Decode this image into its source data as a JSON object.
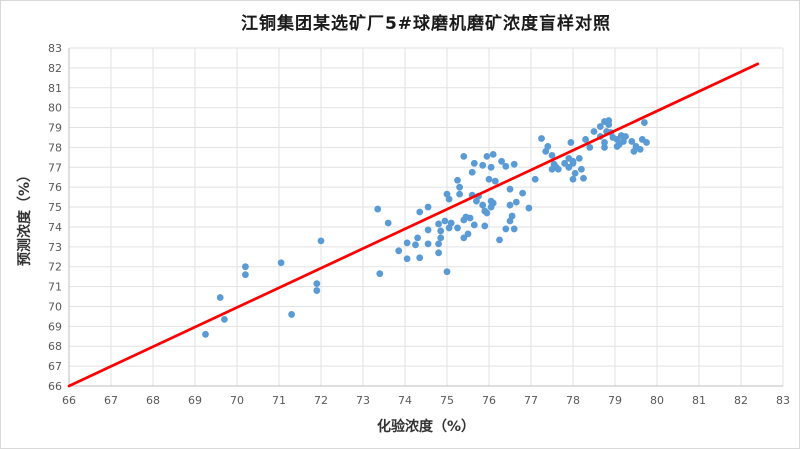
{
  "chart_data": {
    "type": "scatter",
    "title": "江铜集团某选矿厂5#球磨机磨矿浓度盲样对照",
    "xlabel": "化验浓度（%）",
    "ylabel": "预测浓度（%）",
    "xlim": [
      66,
      83
    ],
    "ylim": [
      66,
      83
    ],
    "xticks": [
      66,
      67,
      68,
      69,
      70,
      71,
      72,
      73,
      74,
      75,
      76,
      77,
      78,
      79,
      80,
      81,
      82,
      83
    ],
    "yticks": [
      66,
      67,
      68,
      69,
      70,
      71,
      72,
      73,
      74,
      75,
      76,
      77,
      78,
      79,
      80,
      81,
      82,
      83
    ],
    "grid": true,
    "legend_position": "none",
    "colors": {
      "point": "#5B9BD5",
      "reference_line": "#FF0000",
      "grid": "#E2E2E2",
      "axis": "#BFBFBF",
      "tick_label": "#595959",
      "background": "#FFFFFF"
    },
    "series": [
      {
        "id": "scatter-points",
        "type": "scatter",
        "color": "#5B9BD5",
        "marker_radius": 3.4,
        "points": [
          [
            69.25,
            68.6
          ],
          [
            69.6,
            70.45
          ],
          [
            69.7,
            69.35
          ],
          [
            70.2,
            72.0
          ],
          [
            70.2,
            71.6
          ],
          [
            71.05,
            72.2
          ],
          [
            71.3,
            69.6
          ],
          [
            71.9,
            71.15
          ],
          [
            71.9,
            70.8
          ],
          [
            72.0,
            73.3
          ],
          [
            73.35,
            74.9
          ],
          [
            73.6,
            74.2
          ],
          [
            73.4,
            71.65
          ],
          [
            73.85,
            72.8
          ],
          [
            74.05,
            73.2
          ],
          [
            74.25,
            73.1
          ],
          [
            74.55,
            73.15
          ],
          [
            74.8,
            73.15
          ],
          [
            74.05,
            72.4
          ],
          [
            74.35,
            72.45
          ],
          [
            74.8,
            72.7
          ],
          [
            75.0,
            71.75
          ],
          [
            74.3,
            73.45
          ],
          [
            74.35,
            74.75
          ],
          [
            74.55,
            75.0
          ],
          [
            74.55,
            73.85
          ],
          [
            74.8,
            74.15
          ],
          [
            74.85,
            73.8
          ],
          [
            75.05,
            75.4
          ],
          [
            75.0,
            75.65
          ],
          [
            75.3,
            75.65
          ],
          [
            74.85,
            73.45
          ],
          [
            75.4,
            73.45
          ],
          [
            74.95,
            74.3
          ],
          [
            75.1,
            74.2
          ],
          [
            75.05,
            73.95
          ],
          [
            75.25,
            73.95
          ],
          [
            75.4,
            74.35
          ],
          [
            75.45,
            74.5
          ],
          [
            75.5,
            73.65
          ],
          [
            75.55,
            74.45
          ],
          [
            75.65,
            74.1
          ],
          [
            75.9,
            74.05
          ],
          [
            75.6,
            75.6
          ],
          [
            75.75,
            75.55
          ],
          [
            75.7,
            75.3
          ],
          [
            75.85,
            75.1
          ],
          [
            75.9,
            74.8
          ],
          [
            76.05,
            75.3
          ],
          [
            76.1,
            75.2
          ],
          [
            76.05,
            75.0
          ],
          [
            76.5,
            75.9
          ],
          [
            76.8,
            75.7
          ],
          [
            76.65,
            75.25
          ],
          [
            76.5,
            75.1
          ],
          [
            76.95,
            74.95
          ],
          [
            76.55,
            74.55
          ],
          [
            76.5,
            74.3
          ],
          [
            76.4,
            73.9
          ],
          [
            76.6,
            73.9
          ],
          [
            75.95,
            74.7
          ],
          [
            76.25,
            73.35
          ],
          [
            75.4,
            77.55
          ],
          [
            75.65,
            77.2
          ],
          [
            75.6,
            76.75
          ],
          [
            75.95,
            77.55
          ],
          [
            75.85,
            77.1
          ],
          [
            76.05,
            77.0
          ],
          [
            76.1,
            77.65
          ],
          [
            76.3,
            77.3
          ],
          [
            76.4,
            77.05
          ],
          [
            76.6,
            77.15
          ],
          [
            76.0,
            76.4
          ],
          [
            76.15,
            76.3
          ],
          [
            77.1,
            76.4
          ],
          [
            75.25,
            76.35
          ],
          [
            75.3,
            76.0
          ],
          [
            77.25,
            78.45
          ],
          [
            77.4,
            78.05
          ],
          [
            77.35,
            77.8
          ],
          [
            77.5,
            77.6
          ],
          [
            77.55,
            77.15
          ],
          [
            77.6,
            77.0
          ],
          [
            77.5,
            76.9
          ],
          [
            77.65,
            76.9
          ],
          [
            77.95,
            78.25
          ],
          [
            78.3,
            78.4
          ],
          [
            77.9,
            77.45
          ],
          [
            78.0,
            77.3
          ],
          [
            78.15,
            77.45
          ],
          [
            77.8,
            77.2
          ],
          [
            78.0,
            77.2
          ],
          [
            77.9,
            77.0
          ],
          [
            78.05,
            76.7
          ],
          [
            78.2,
            76.9
          ],
          [
            78.0,
            76.4
          ],
          [
            78.25,
            76.45
          ],
          [
            78.4,
            78.0
          ],
          [
            78.5,
            78.8
          ],
          [
            78.65,
            78.55
          ],
          [
            78.65,
            79.05
          ],
          [
            78.75,
            79.3
          ],
          [
            78.85,
            79.35
          ],
          [
            78.85,
            79.15
          ],
          [
            78.8,
            78.8
          ],
          [
            78.9,
            78.75
          ],
          [
            78.95,
            78.5
          ],
          [
            78.75,
            78.25
          ],
          [
            78.75,
            78.0
          ],
          [
            79.05,
            78.4
          ],
          [
            79.15,
            78.6
          ],
          [
            79.2,
            78.3
          ],
          [
            79.25,
            78.55
          ],
          [
            79.05,
            78.05
          ],
          [
            79.1,
            78.15
          ],
          [
            79.4,
            78.3
          ],
          [
            79.5,
            78.05
          ],
          [
            79.45,
            77.8
          ],
          [
            79.6,
            77.9
          ],
          [
            79.7,
            79.25
          ],
          [
            79.65,
            78.4
          ],
          [
            79.75,
            78.25
          ]
        ]
      },
      {
        "id": "reference-line",
        "type": "line",
        "color": "#FF0000",
        "stroke_width": 2.75,
        "points": [
          [
            66,
            66
          ],
          [
            82.4,
            82.2
          ]
        ]
      }
    ]
  }
}
